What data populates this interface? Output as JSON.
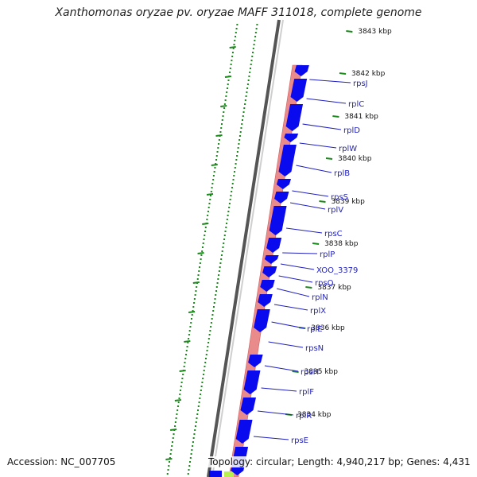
{
  "title": "Xanthomonas oryzae pv. oryzae MAFF 311018, complete genome",
  "footer": {
    "accession": "Accession: NC_007705",
    "summary": "Topology: circular; Length: 4,940,217 bp; Genes: 4,431"
  },
  "ticks": [
    "3843 kbp",
    "3842 kbp",
    "3841 kbp",
    "3840 kbp",
    "3839 kbp",
    "3838 kbp",
    "3837 kbp",
    "3836 kbp",
    "3835 kbp",
    "3834 kbp"
  ],
  "genes": [
    "rpsJ",
    "rplC",
    "rplD",
    "rplW",
    "rplB",
    "rpsS",
    "rplV",
    "rpsC",
    "rplP",
    "XOO_3379",
    "rpsQ",
    "rplN",
    "rplX",
    "rplE",
    "rpsN",
    "rpsH",
    "rplF",
    "rplR",
    "rpsE"
  ],
  "colors": {
    "cds": "#0a0aee",
    "feature_band": "#e98b8b",
    "backbone": "#888888",
    "gc_dots": "#1a8a1a",
    "label": "#1f1fbf"
  }
}
